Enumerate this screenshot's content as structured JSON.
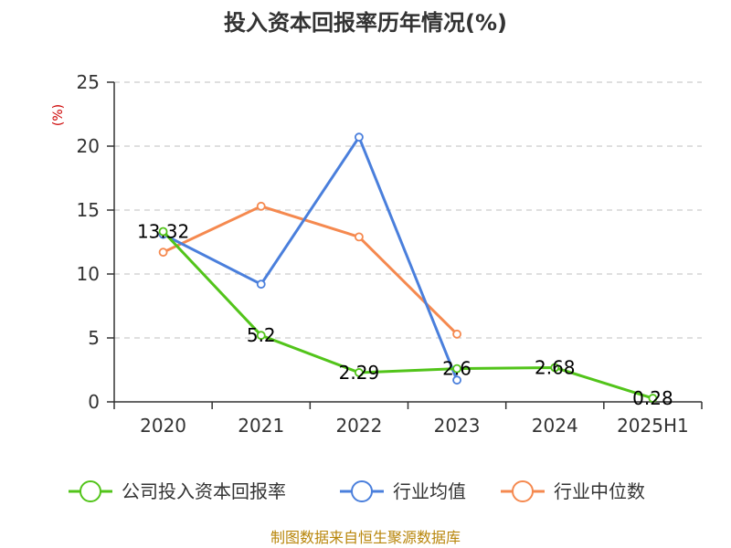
{
  "chart_data": {
    "type": "line",
    "title": "投入资本回报率历年情况(%)",
    "ylabel": "(%)",
    "xlabel": "",
    "categories": [
      "2020",
      "2021",
      "2022",
      "2023",
      "2024",
      "2025H1"
    ],
    "ylim": [
      0,
      25
    ],
    "yticks": [
      0,
      5,
      10,
      15,
      20,
      25
    ],
    "grid": true,
    "legend_position": "bottom",
    "series": [
      {
        "name": "公司投入资本回报率",
        "color": "#52c41a",
        "values": [
          13.32,
          5.2,
          2.29,
          2.6,
          2.68,
          0.28
        ],
        "labels": [
          "13.32",
          "5.2",
          "2.29",
          "2.6",
          "2.68",
          "0.28"
        ]
      },
      {
        "name": "行业均值",
        "color": "#4a7fdc",
        "values": [
          13.1,
          9.2,
          20.7,
          1.7,
          null,
          null
        ]
      },
      {
        "name": "行业中位数",
        "color": "#f5894f",
        "values": [
          11.7,
          15.3,
          12.9,
          5.3,
          null,
          null
        ]
      }
    ]
  },
  "source": "制图数据来自恒生聚源数据库"
}
